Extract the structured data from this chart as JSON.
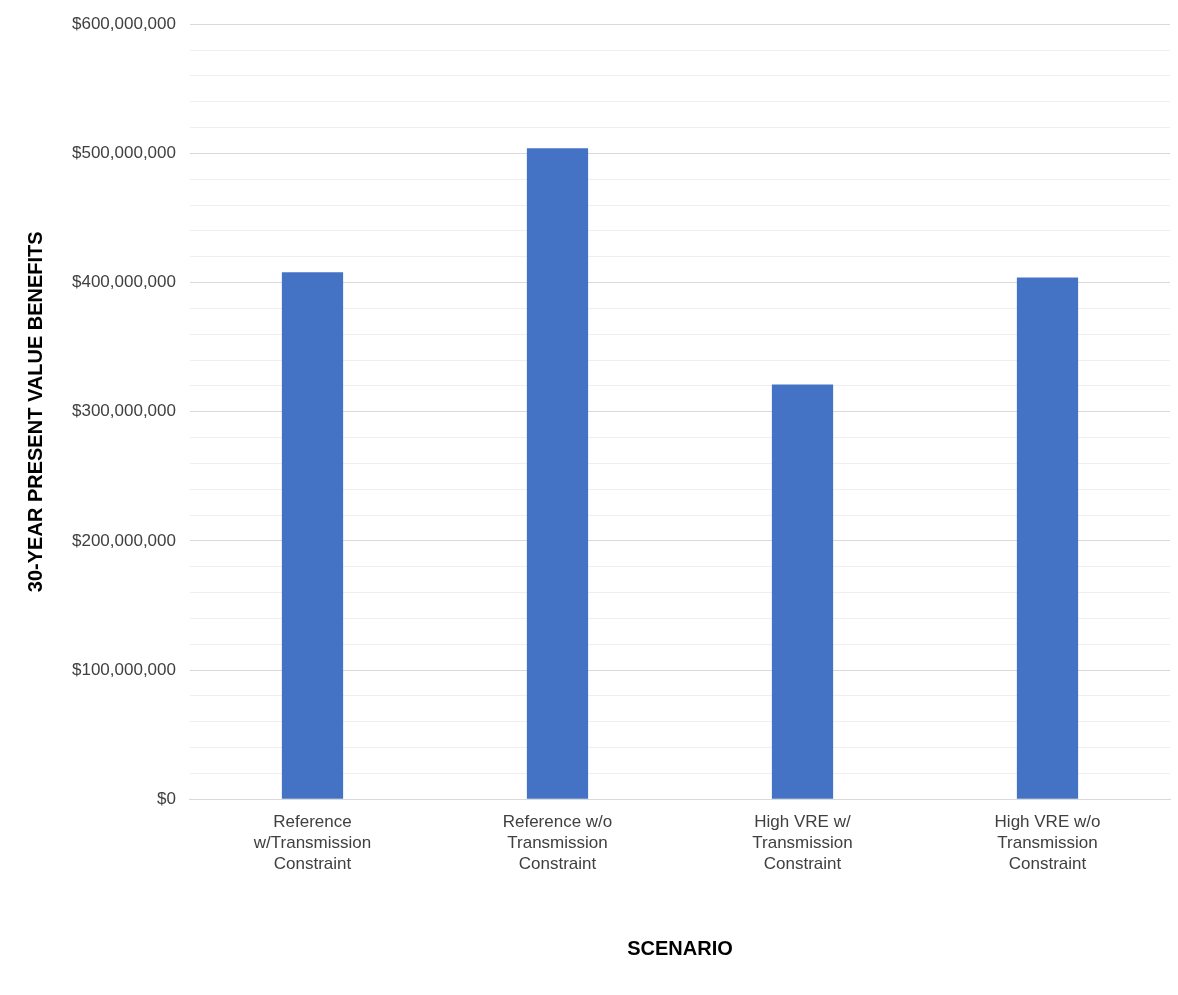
{
  "chart_data": {
    "type": "bar",
    "xlabel": "SCENARIO",
    "ylabel": "30-YEAR PRESENT VALUE BENEFITS",
    "categories": [
      "Reference w/Transmission Constraint",
      "Reference w/o Transmission Constraint",
      "High VRE w/ Transmission Constraint",
      "High VRE w/o Transmission Constraint"
    ],
    "values": [
      408000000,
      504000000,
      321000000,
      404000000
    ],
    "color": "#4472c4",
    "ylim": [
      0,
      600000000
    ],
    "yticks": [
      {
        "value": 0,
        "label": "$0"
      },
      {
        "value": 20000000,
        "label": null
      },
      {
        "value": 40000000,
        "label": null
      },
      {
        "value": 60000000,
        "label": null
      },
      {
        "value": 80000000,
        "label": null
      },
      {
        "value": 100000000,
        "label": "$100,000,000"
      },
      {
        "value": 120000000,
        "label": null
      },
      {
        "value": 140000000,
        "label": null
      },
      {
        "value": 160000000,
        "label": null
      },
      {
        "value": 180000000,
        "label": null
      },
      {
        "value": 200000000,
        "label": "$200,000,000"
      },
      {
        "value": 220000000,
        "label": null
      },
      {
        "value": 240000000,
        "label": null
      },
      {
        "value": 260000000,
        "label": null
      },
      {
        "value": 280000000,
        "label": null
      },
      {
        "value": 300000000,
        "label": "$300,000,000"
      },
      {
        "value": 320000000,
        "label": null
      },
      {
        "value": 340000000,
        "label": null
      },
      {
        "value": 360000000,
        "label": null
      },
      {
        "value": 380000000,
        "label": null
      },
      {
        "value": 400000000,
        "label": "$400,000,000"
      },
      {
        "value": 420000000,
        "label": null
      },
      {
        "value": 440000000,
        "label": null
      },
      {
        "value": 460000000,
        "label": null
      },
      {
        "value": 480000000,
        "label": null
      },
      {
        "value": 500000000,
        "label": "$500,000,000"
      },
      {
        "value": 520000000,
        "label": null
      },
      {
        "value": 540000000,
        "label": null
      },
      {
        "value": 560000000,
        "label": null
      },
      {
        "value": 580000000,
        "label": null
      },
      {
        "value": 600000000,
        "label": "$600,000,000"
      }
    ],
    "grid": "y",
    "legend": false
  }
}
